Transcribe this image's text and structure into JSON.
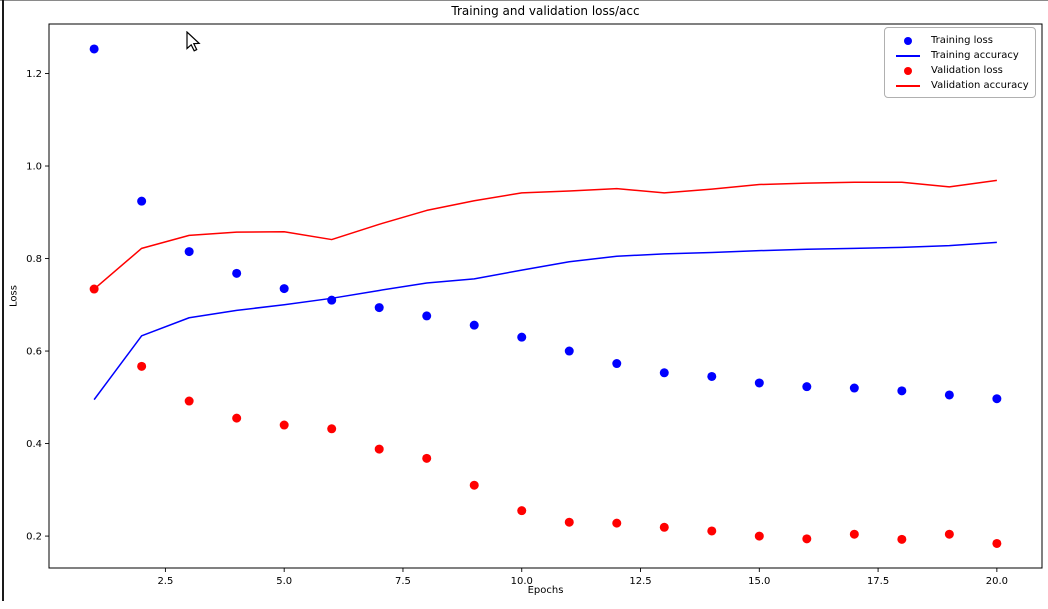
{
  "chart_data": {
    "type": "line+scatter",
    "title": "Training and validation loss/acc",
    "xlabel": "Epochs",
    "ylabel": "Loss",
    "grid": false,
    "legend_position": "upper right",
    "x": [
      1,
      2,
      3,
      4,
      5,
      6,
      7,
      8,
      9,
      10,
      11,
      12,
      13,
      14,
      15,
      16,
      17,
      18,
      19,
      20
    ],
    "xlim": [
      0.05,
      20.95
    ],
    "ylim": [
      0.131,
      1.307
    ],
    "xticks": {
      "values": [
        2.5,
        5.0,
        7.5,
        10.0,
        12.5,
        15.0,
        17.5,
        20.0
      ],
      "labels": [
        "2.5",
        "5.0",
        "7.5",
        "10.0",
        "12.5",
        "15.0",
        "17.5",
        "20.0"
      ]
    },
    "yticks": {
      "values": [
        0.2,
        0.4,
        0.6,
        0.8,
        1.0,
        1.2
      ],
      "labels": [
        "0.2",
        "0.4",
        "0.6",
        "0.8",
        "1.0",
        "1.2"
      ]
    },
    "series": [
      {
        "name": "Training loss",
        "type": "scatter",
        "color": "#0000ff",
        "values": [
          1.253,
          0.924,
          0.815,
          0.768,
          0.735,
          0.71,
          0.694,
          0.676,
          0.656,
          0.63,
          0.6,
          0.573,
          0.553,
          0.545,
          0.531,
          0.523,
          0.52,
          0.514,
          0.505,
          0.497
        ]
      },
      {
        "name": "Training accuracy",
        "type": "line",
        "color": "#0000ff",
        "values": [
          0.495,
          0.633,
          0.672,
          0.688,
          0.7,
          0.714,
          0.731,
          0.747,
          0.756,
          0.775,
          0.793,
          0.805,
          0.81,
          0.813,
          0.817,
          0.82,
          0.822,
          0.824,
          0.828,
          0.835
        ]
      },
      {
        "name": "Validation loss",
        "type": "scatter",
        "color": "#ff0000",
        "values": [
          0.734,
          0.567,
          0.492,
          0.455,
          0.44,
          0.432,
          0.388,
          0.368,
          0.31,
          0.255,
          0.23,
          0.228,
          0.219,
          0.211,
          0.2,
          0.194,
          0.204,
          0.193,
          0.204,
          0.184
        ]
      },
      {
        "name": "Validation accuracy",
        "type": "line",
        "color": "#ff0000",
        "values": [
          0.734,
          0.822,
          0.85,
          0.857,
          0.858,
          0.841,
          0.874,
          0.904,
          0.925,
          0.942,
          0.946,
          0.951,
          0.942,
          0.95,
          0.96,
          0.963,
          0.965,
          0.965,
          0.955,
          0.969
        ]
      }
    ]
  }
}
